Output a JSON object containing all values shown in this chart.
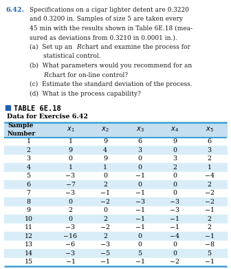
{
  "problem_number": "6.42.",
  "problem_text_lines": [
    [
      "Specifications on a cigar lighter detent are 0.3220",
      false
    ],
    [
      "and 0.3200 in. Samples of size 5 are taken every",
      false
    ],
    [
      "45 min with the results shown in Table 6E.18 (mea-",
      false
    ],
    [
      "sured as deviations from 0.3210 in 0.0001 in.).",
      false
    ],
    [
      "(a)  Set up an ",
      false
    ],
    [
      "      statistical control.",
      false
    ],
    [
      "(b)  What parameters would you recommend for an",
      false
    ],
    [
      "      R chart for on-line control?",
      false
    ],
    [
      "(c)  Estimate the standard deviation of the process.",
      false
    ],
    [
      "(d)  What is the process capability?",
      false
    ]
  ],
  "table_title": "TABLE 6E.18",
  "table_subtitle": "Data for Exercise 6.42",
  "data": [
    [
      1,
      1,
      9,
      6,
      9,
      6
    ],
    [
      2,
      9,
      4,
      3,
      0,
      3
    ],
    [
      3,
      0,
      9,
      0,
      3,
      2
    ],
    [
      4,
      1,
      1,
      0,
      2,
      1
    ],
    [
      5,
      -3,
      0,
      -1,
      0,
      -4
    ],
    [
      6,
      -7,
      2,
      0,
      0,
      2
    ],
    [
      7,
      -3,
      -1,
      -1,
      0,
      -2
    ],
    [
      8,
      0,
      -2,
      -3,
      -3,
      -2
    ],
    [
      9,
      2,
      0,
      -1,
      -3,
      -1
    ],
    [
      10,
      0,
      2,
      -1,
      -1,
      2
    ],
    [
      11,
      -3,
      -2,
      -1,
      -1,
      2
    ],
    [
      12,
      -16,
      2,
      0,
      -4,
      -1
    ],
    [
      13,
      -6,
      -3,
      0,
      0,
      -8
    ],
    [
      14,
      -3,
      -5,
      5,
      0,
      5
    ],
    [
      15,
      -1,
      -1,
      -1,
      -2,
      -1
    ]
  ],
  "header_bg": "#c5dff0",
  "row_bg_even": "#d8edf8",
  "row_bg_odd": "#ffffff",
  "border_color": "#3a9fd5",
  "problem_num_color": "#2060b0",
  "bullet_color": "#2060b0",
  "text_color": "#1a1a1a"
}
